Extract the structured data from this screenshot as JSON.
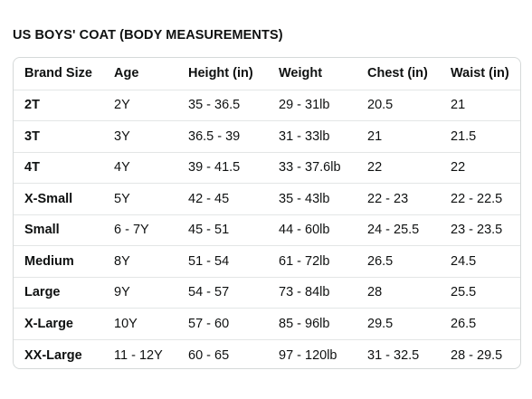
{
  "title": "US BOYS' COAT (BODY MEASUREMENTS)",
  "table": {
    "headers": [
      "Brand Size",
      "Age",
      "Height (in)",
      "Weight",
      "Chest (in)",
      "Waist (in)"
    ],
    "rows": [
      [
        "2T",
        "2Y",
        "35 - 36.5",
        "29 - 31lb",
        "20.5",
        "21"
      ],
      [
        "3T",
        "3Y",
        "36.5 - 39",
        "31 - 33lb",
        "21",
        "21.5"
      ],
      [
        "4T",
        "4Y",
        "39 - 41.5",
        "33 - 37.6lb",
        "22",
        "22"
      ],
      [
        "X-Small",
        "5Y",
        "42 - 45",
        "35 - 43lb",
        "22 - 23",
        "22 - 22.5"
      ],
      [
        "Small",
        "6 - 7Y",
        "45 - 51",
        "44 - 60lb",
        "24 - 25.5",
        "23 - 23.5"
      ],
      [
        "Medium",
        "8Y",
        "51 - 54",
        "61 - 72lb",
        "26.5",
        "24.5"
      ],
      [
        "Large",
        "9Y",
        "54 - 57",
        "73 - 84lb",
        "28",
        "25.5"
      ],
      [
        "X-Large",
        "10Y",
        "57 - 60",
        "85 - 96lb",
        "29.5",
        "26.5"
      ],
      [
        "XX-Large",
        "11 - 12Y",
        "60 - 65",
        "97 - 120lb",
        "31 - 32.5",
        "28 - 29.5"
      ]
    ]
  }
}
